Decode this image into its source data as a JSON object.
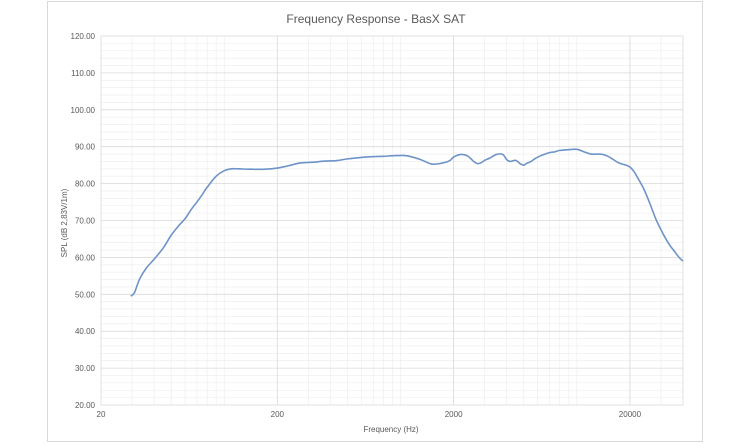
{
  "chart_data": {
    "type": "line",
    "title": "Frequency Response - BasX SAT",
    "xlabel": "Frequency (Hz)",
    "ylabel": "SPL (dB 2,83V/1m)",
    "x_scale": "log",
    "xlim": [
      20,
      40000
    ],
    "ylim": [
      20,
      120
    ],
    "x_ticks": [
      20,
      200,
      2000,
      20000
    ],
    "x_tick_labels": [
      "20",
      "200",
      "2000",
      "20000"
    ],
    "y_ticks": [
      20,
      30,
      40,
      50,
      60,
      70,
      80,
      90,
      100,
      110,
      120
    ],
    "y_tick_labels": [
      "20.00",
      "30.00",
      "40.00",
      "50.00",
      "60.00",
      "70.00",
      "80.00",
      "90.00",
      "100.00",
      "110.00",
      "120.00"
    ],
    "grid": true,
    "minor_grid": true,
    "legend": "none",
    "colors": {
      "line": "#6d93c8",
      "grid_major": "#d9d9d9",
      "grid_minor": "#ececec",
      "text": "#595959"
    },
    "series": [
      {
        "x": [
          29.5,
          31,
          33,
          36,
          40,
          45,
          50,
          55,
          60,
          65,
          70,
          75,
          80,
          90,
          100,
          110,
          120,
          140,
          170,
          200,
          230,
          270,
          320,
          370,
          430,
          500,
          600,
          700,
          800,
          950,
          1100,
          1300,
          1500,
          1700,
          1900,
          2000,
          2200,
          2400,
          2600,
          2750,
          2900,
          3000,
          3200,
          3500,
          3800,
          4000,
          4200,
          4500,
          4800,
          5000,
          5200,
          5500,
          5800,
          6200,
          6600,
          7000,
          7500,
          8000,
          9000,
          10000,
          11000,
          12000,
          13000,
          14000,
          15000,
          16000,
          17000,
          18000,
          19000,
          20000,
          21000,
          22000,
          24000,
          26000,
          28000,
          30000,
          32000,
          34000,
          36000,
          38000,
          40000
        ],
        "y": [
          49.5,
          50.5,
          54.0,
          57.0,
          59.5,
          62.5,
          66.0,
          68.5,
          70.5,
          73.0,
          75.0,
          77.0,
          79.0,
          82.0,
          83.5,
          84.0,
          84.0,
          83.9,
          83.9,
          84.2,
          84.8,
          85.6,
          85.8,
          86.1,
          86.2,
          86.7,
          87.1,
          87.3,
          87.4,
          87.6,
          87.5,
          86.5,
          85.3,
          85.5,
          86.2,
          87.2,
          87.9,
          87.5,
          86.0,
          85.4,
          85.8,
          86.3,
          86.9,
          87.9,
          87.9,
          86.5,
          86.0,
          86.3,
          85.3,
          85.0,
          85.5,
          86.0,
          86.8,
          87.5,
          88.0,
          88.4,
          88.6,
          89.0,
          89.2,
          89.3,
          88.6,
          88.0,
          88.0,
          87.9,
          87.4,
          86.6,
          85.8,
          85.3,
          85.0,
          84.5,
          83.4,
          81.8,
          78.5,
          74.5,
          70.5,
          67.5,
          65.0,
          63.0,
          61.5,
          60.0,
          59.0
        ]
      }
    ]
  }
}
